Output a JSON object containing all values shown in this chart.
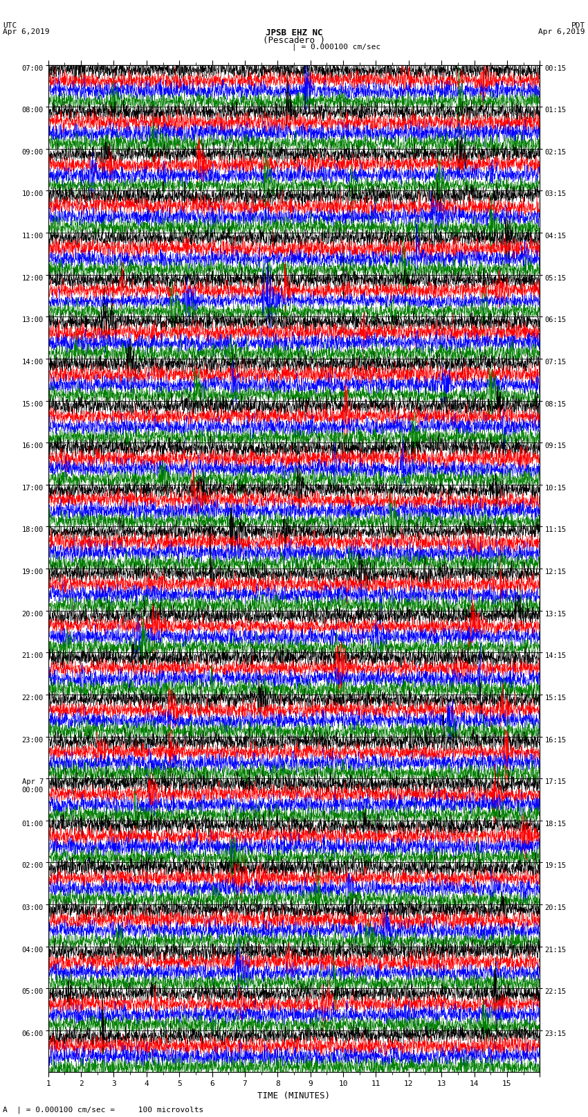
{
  "title_line1": "JPSB EHZ NC",
  "title_line2": "(Pescadero )",
  "scale_text": "| = 0.000100 cm/sec",
  "utc_label": "UTC\nApr 6,2019",
  "pdt_label": "PDT\nApr 6,2019",
  "bottom_label": "A  | = 0.000100 cm/sec =     100 microvolts",
  "xlabel": "TIME (MINUTES)",
  "left_times": [
    "07:00",
    "08:00",
    "09:00",
    "10:00",
    "11:00",
    "12:00",
    "13:00",
    "14:00",
    "15:00",
    "16:00",
    "17:00",
    "18:00",
    "19:00",
    "20:00",
    "21:00",
    "22:00",
    "23:00",
    "Apr 7\n00:00",
    "01:00",
    "02:00",
    "03:00",
    "04:00",
    "05:00",
    "06:00"
  ],
  "right_times": [
    "00:15",
    "01:15",
    "02:15",
    "03:15",
    "04:15",
    "05:15",
    "06:15",
    "07:15",
    "08:15",
    "09:15",
    "10:15",
    "11:15",
    "12:15",
    "13:15",
    "14:15",
    "15:15",
    "16:15",
    "17:15",
    "18:15",
    "19:15",
    "20:15",
    "21:15",
    "22:15",
    "23:15"
  ],
  "n_rows": 24,
  "traces_per_row": 4,
  "colors": [
    "black",
    "red",
    "blue",
    "green"
  ],
  "bg_color": "#ffffff",
  "fig_width": 8.5,
  "fig_height": 16.13,
  "dpi": 100,
  "samples": 2700,
  "noise_seed": 42
}
